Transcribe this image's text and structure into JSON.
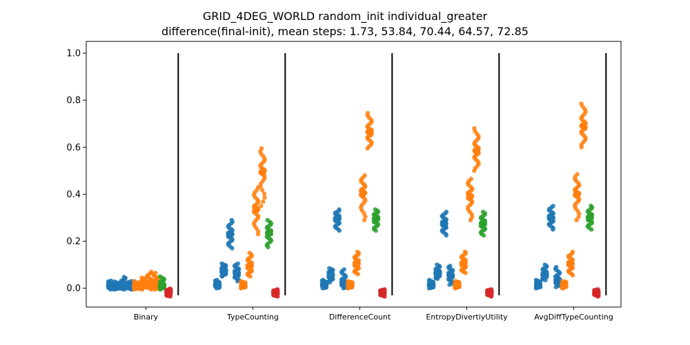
{
  "chart_data": {
    "type": "scatter",
    "title": "GRID_4DEG_WORLD random_init individual_greater",
    "subtitle": "difference(final-init), mean steps: 1.73, 53.84, 70.44, 64.57, 72.85",
    "xlabel": "",
    "ylabel": "",
    "ylim": [
      -0.08,
      1.05
    ],
    "yticks": [
      "0.0",
      "0.2",
      "0.4",
      "0.6",
      "0.8",
      "1.0"
    ],
    "grid": false,
    "colors": {
      "blue": "#1f77b4",
      "orange": "#ff7f0e",
      "green": "#2ca02c",
      "red": "#d62728",
      "separator": "#000000"
    },
    "groups": [
      {
        "label": "Binary",
        "strips": [
          {
            "color": "blue",
            "mean": 0.01,
            "min": -0.005,
            "max": 0.032
          },
          {
            "color": "blue",
            "mean": 0.007,
            "min": -0.005,
            "max": 0.028
          },
          {
            "color": "blue",
            "mean": 0.012,
            "min": -0.005,
            "max": 0.048
          },
          {
            "color": "blue",
            "mean": 0.008,
            "min": -0.005,
            "max": 0.03
          },
          {
            "color": "orange",
            "mean": 0.01,
            "min": -0.005,
            "max": 0.03
          },
          {
            "color": "orange",
            "mean": 0.015,
            "min": -0.005,
            "max": 0.045
          },
          {
            "color": "orange",
            "mean": 0.02,
            "min": -0.005,
            "max": 0.07
          },
          {
            "color": "orange",
            "mean": 0.02,
            "min": -0.005,
            "max": 0.065
          },
          {
            "color": "green",
            "mean": 0.012,
            "min": -0.005,
            "max": 0.05
          },
          {
            "color": "red",
            "mean": -0.018,
            "min": -0.035,
            "max": -0.002
          }
        ]
      },
      {
        "label": "TypeCounting",
        "strips": [
          {
            "color": "blue",
            "mean": 0.015,
            "min": 0.0,
            "max": 0.035
          },
          {
            "color": "blue",
            "mean": 0.075,
            "min": 0.05,
            "max": 0.105
          },
          {
            "color": "blue",
            "mean": 0.23,
            "min": 0.17,
            "max": 0.29
          },
          {
            "color": "blue",
            "mean": 0.065,
            "min": 0.03,
            "max": 0.105
          },
          {
            "color": "orange",
            "mean": 0.013,
            "min": 0.0,
            "max": 0.03
          },
          {
            "color": "orange",
            "mean": 0.095,
            "min": 0.05,
            "max": 0.15
          },
          {
            "color": "orange",
            "mean": 0.335,
            "min": 0.23,
            "max": 0.43
          },
          {
            "color": "orange",
            "mean": 0.495,
            "min": 0.35,
            "max": 0.595
          },
          {
            "color": "green",
            "mean": 0.235,
            "min": 0.175,
            "max": 0.29
          },
          {
            "color": "red",
            "mean": -0.018,
            "min": -0.035,
            "max": -0.005
          }
        ]
      },
      {
        "label": "DifferenceCount",
        "strips": [
          {
            "color": "blue",
            "mean": 0.015,
            "min": 0.0,
            "max": 0.035
          },
          {
            "color": "blue",
            "mean": 0.055,
            "min": 0.025,
            "max": 0.085
          },
          {
            "color": "blue",
            "mean": 0.295,
            "min": 0.245,
            "max": 0.335
          },
          {
            "color": "blue",
            "mean": 0.025,
            "min": 0.0,
            "max": 0.08
          },
          {
            "color": "orange",
            "mean": 0.013,
            "min": 0.0,
            "max": 0.03
          },
          {
            "color": "orange",
            "mean": 0.105,
            "min": 0.06,
            "max": 0.155
          },
          {
            "color": "orange",
            "mean": 0.405,
            "min": 0.29,
            "max": 0.48
          },
          {
            "color": "orange",
            "mean": 0.665,
            "min": 0.595,
            "max": 0.745
          },
          {
            "color": "green",
            "mean": 0.295,
            "min": 0.245,
            "max": 0.335
          },
          {
            "color": "red",
            "mean": -0.018,
            "min": -0.035,
            "max": -0.005
          }
        ]
      },
      {
        "label": "EntropyDivertiyUtility",
        "strips": [
          {
            "color": "blue",
            "mean": 0.015,
            "min": 0.0,
            "max": 0.035
          },
          {
            "color": "blue",
            "mean": 0.065,
            "min": 0.04,
            "max": 0.1
          },
          {
            "color": "blue",
            "mean": 0.275,
            "min": 0.225,
            "max": 0.325
          },
          {
            "color": "blue",
            "mean": 0.055,
            "min": 0.015,
            "max": 0.095
          },
          {
            "color": "orange",
            "mean": 0.013,
            "min": 0.0,
            "max": 0.03
          },
          {
            "color": "orange",
            "mean": 0.105,
            "min": 0.065,
            "max": 0.155
          },
          {
            "color": "orange",
            "mean": 0.39,
            "min": 0.29,
            "max": 0.465
          },
          {
            "color": "orange",
            "mean": 0.585,
            "min": 0.5,
            "max": 0.68
          },
          {
            "color": "green",
            "mean": 0.275,
            "min": 0.225,
            "max": 0.325
          },
          {
            "color": "red",
            "mean": -0.018,
            "min": -0.035,
            "max": -0.005
          }
        ]
      },
      {
        "label": "AvgDiffTypeCounting",
        "strips": [
          {
            "color": "blue",
            "mean": 0.015,
            "min": 0.0,
            "max": 0.035
          },
          {
            "color": "blue",
            "mean": 0.06,
            "min": 0.035,
            "max": 0.1
          },
          {
            "color": "blue",
            "mean": 0.3,
            "min": 0.25,
            "max": 0.35
          },
          {
            "color": "blue",
            "mean": 0.035,
            "min": 0.005,
            "max": 0.09
          },
          {
            "color": "orange",
            "mean": 0.013,
            "min": 0.0,
            "max": 0.03
          },
          {
            "color": "orange",
            "mean": 0.105,
            "min": 0.055,
            "max": 0.155
          },
          {
            "color": "orange",
            "mean": 0.4,
            "min": 0.29,
            "max": 0.485
          },
          {
            "color": "orange",
            "mean": 0.69,
            "min": 0.6,
            "max": 0.785
          },
          {
            "color": "green",
            "mean": 0.3,
            "min": 0.25,
            "max": 0.35
          },
          {
            "color": "red",
            "mean": -0.018,
            "min": -0.035,
            "max": -0.005
          }
        ]
      }
    ]
  }
}
